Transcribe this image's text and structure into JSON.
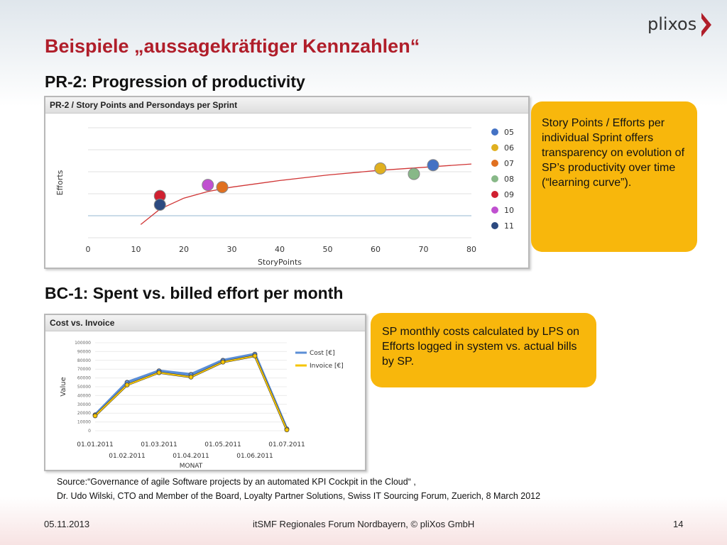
{
  "header": {
    "title": "Beispiele „aussagekräftiger Kennzahlen“",
    "logo_text": "plixos",
    "logo_color": "#b01e2a"
  },
  "section1": {
    "title": "PR-2: Progression of productivity",
    "chart_header": "PR-2 / Story Points and Persondays per Sprint",
    "callout": "Story Points / Efforts per individual Sprint offers transparency on evolution of SP’s productivity over time (“learning curve”)."
  },
  "section2": {
    "title": "BC-1: Spent vs. billed effort per month",
    "chart_header": "Cost vs. Invoice",
    "callout": "SP monthly costs calculated by LPS on Efforts logged in system vs. actual bills by SP."
  },
  "source": {
    "line1": "Source:“Governance of agile Software projects by an automated KPI Cockpit in the Cloud“ ,",
    "line2": "Dr. Udo Wilski, CTO and Member of the Board, Loyalty Partner Solutions, Swiss IT Sourcing Forum, Zuerich, 8 March 2012"
  },
  "footer": {
    "date": "05.11.2013",
    "center": "itSMF Regionales Forum Nordbayern, © pliXos GmbH",
    "page": "14"
  },
  "chart_data": [
    {
      "type": "scatter",
      "title": "PR-2 / Story Points and Persondays per Sprint",
      "xlabel": "StoryPoints",
      "ylabel": "Efforts",
      "xlim": [
        0,
        80
      ],
      "ylim": [
        0,
        10
      ],
      "xticks": [
        0,
        10,
        20,
        30,
        40,
        50,
        60,
        70,
        80
      ],
      "grid": true,
      "legend_position": "right",
      "trendline": {
        "type": "log",
        "x": [
          11,
          15,
          20,
          25,
          30,
          40,
          50,
          60,
          70,
          80
        ],
        "y": [
          1.2,
          2.6,
          3.6,
          4.2,
          4.6,
          5.2,
          5.7,
          6.1,
          6.4,
          6.7
        ]
      },
      "series": [
        {
          "name": "05",
          "color": "#4472c4",
          "points": [
            [
              72,
              6.6
            ]
          ]
        },
        {
          "name": "06",
          "color": "#e0b020",
          "points": [
            [
              61,
              6.3
            ]
          ]
        },
        {
          "name": "07",
          "color": "#e07020",
          "points": [
            [
              28,
              4.6
            ]
          ]
        },
        {
          "name": "08",
          "color": "#88b888",
          "points": [
            [
              68,
              5.8
            ]
          ]
        },
        {
          "name": "09",
          "color": "#d02030",
          "points": [
            [
              15,
              3.8
            ]
          ]
        },
        {
          "name": "10",
          "color": "#c050d0",
          "points": [
            [
              25,
              4.8
            ]
          ]
        },
        {
          "name": "11",
          "color": "#2c4a80",
          "points": [
            [
              15,
              3.0
            ]
          ]
        }
      ]
    },
    {
      "type": "line",
      "title": "Cost vs. Invoice",
      "xlabel": "MONAT",
      "ylabel": "Value",
      "ylim": [
        0,
        100000
      ],
      "yticks": [
        0,
        10000,
        20000,
        30000,
        40000,
        50000,
        60000,
        70000,
        80000,
        90000,
        100000
      ],
      "categories": [
        "01.01.2011",
        "01.02.2011",
        "01.03.2011",
        "01.04.2011",
        "01.05.2011",
        "01.06.2011",
        "01.07.2011"
      ],
      "legend_position": "right",
      "series": [
        {
          "name": "Cost [€]",
          "color": "#5b8ed6",
          "values": [
            18000,
            55000,
            68000,
            64000,
            80000,
            87000,
            2000
          ]
        },
        {
          "name": "Invoice [€]",
          "color": "#f5c400",
          "values": [
            17000,
            52000,
            66000,
            61000,
            78000,
            85000,
            1000
          ]
        }
      ]
    }
  ]
}
